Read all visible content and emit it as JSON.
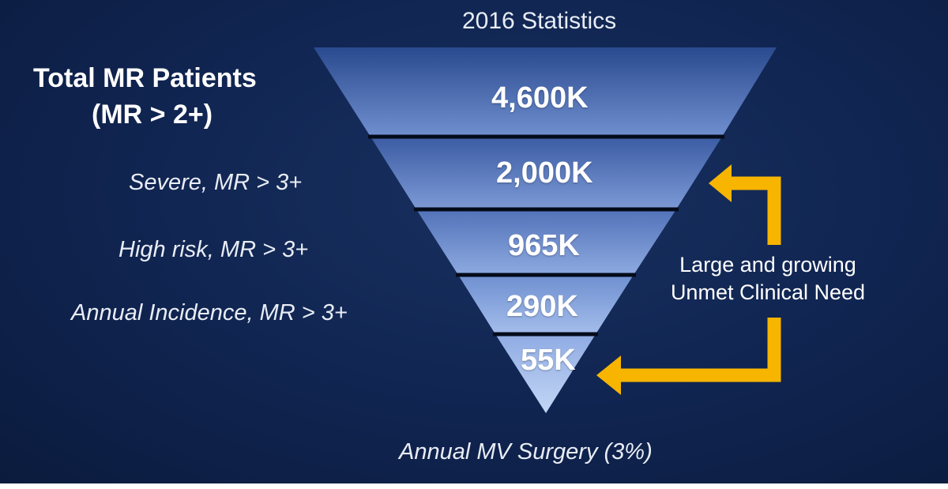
{
  "slide": {
    "stats_title": "2016 Statistics",
    "total_label": "Total MR Patients",
    "total_sub": "(MR > 2+)",
    "rows": [
      {
        "label": "Severe, MR > 3+",
        "value": "2,000K"
      },
      {
        "label": "High risk, MR > 3+",
        "value": "965K"
      },
      {
        "label": "Annual Incidence, MR > 3+",
        "value": "290K"
      }
    ],
    "top_value": "4,600K",
    "bottom_value": "55K",
    "bottom_label": "Annual MV Surgery (3%)",
    "need_line1": "Large and growing",
    "need_line2": "Unmet Clinical Need"
  },
  "colors": {
    "background": "#102450",
    "funnel_top": "#2c4f96",
    "funnel_bottom": "#a9c4ee",
    "divider": "#050b1a",
    "arrow": "#f7b500"
  }
}
